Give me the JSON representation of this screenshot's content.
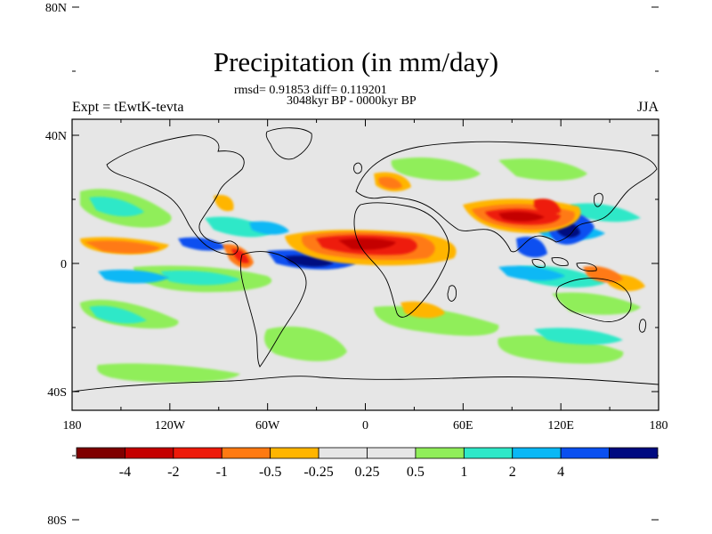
{
  "title": "Precipitation (in mm/day)",
  "stats_line": "rmsd= 0.91853 diff= 0.119201",
  "period": "3048kyr BP - 0000kyr BP",
  "experiment": "Expt = tEwtK-tevta",
  "season": "JJA",
  "lat_ticks": [
    {
      "value": 80,
      "label": "80N"
    },
    {
      "value": 40,
      "label": "40N"
    },
    {
      "value": 0,
      "label": "0"
    },
    {
      "value": -40,
      "label": "40S"
    },
    {
      "value": -80,
      "label": "80S"
    }
  ],
  "lon_ticks": [
    {
      "value": -180,
      "label": "180"
    },
    {
      "value": -120,
      "label": "120W"
    },
    {
      "value": -60,
      "label": "60W"
    },
    {
      "value": 0,
      "label": "0"
    },
    {
      "value": 60,
      "label": "60E"
    },
    {
      "value": 120,
      "label": "120E"
    },
    {
      "value": 180,
      "label": "180"
    }
  ],
  "colorbar": {
    "colors": [
      "#7f0000",
      "#c40000",
      "#ee1a0a",
      "#ff7a12",
      "#ffb500",
      "#e6e6e6",
      "#e6e6e6",
      "#90ee5a",
      "#2ee8c8",
      "#0ab8f5",
      "#0a50f0",
      "#000a80"
    ],
    "labels": [
      "-4",
      "-2",
      "-1",
      "-0.5",
      "-0.25",
      "0.25",
      "0.5",
      "1",
      "2",
      "4"
    ]
  },
  "colors": {
    "ocean_land_fill": "#e6e6e6",
    "coastline": "#000000"
  }
}
